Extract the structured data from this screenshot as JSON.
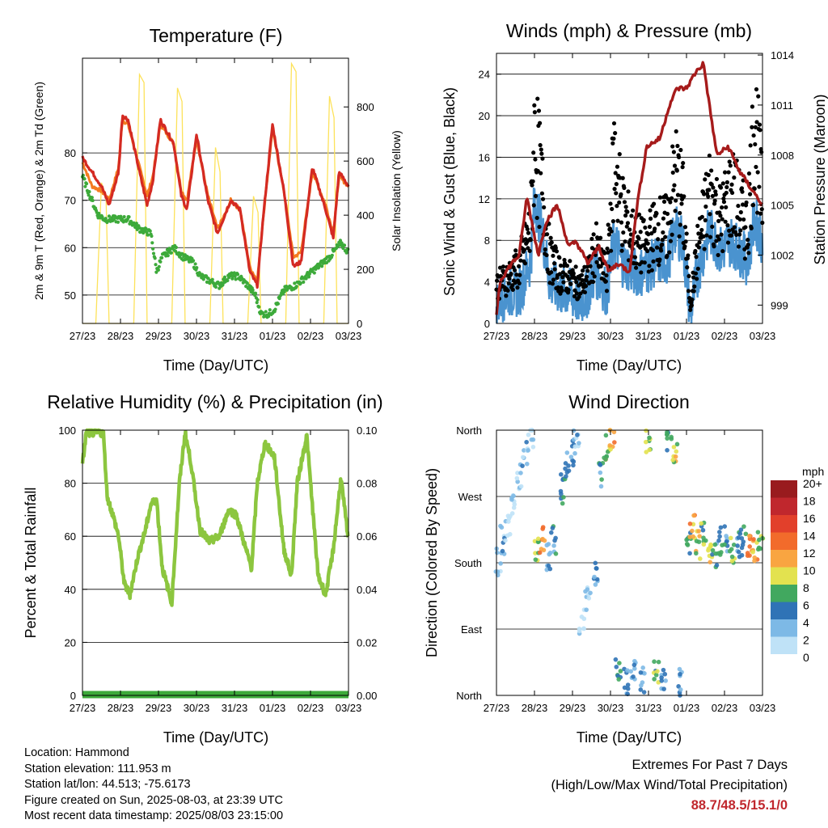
{
  "x_ticks": [
    "27/23",
    "28/23",
    "29/23",
    "30/23",
    "31/23",
    "01/23",
    "02/23",
    "03/23"
  ],
  "temperature": {
    "title": "Temperature (F)",
    "xlabel": "Time (Day/UTC)",
    "ylabel_left": "2m & 9m T (Red, Orange) & 2m Td (Green)",
    "ylabel_right": "Solar Insolation (Yellow)",
    "colors": {
      "t2m": "#d42a22",
      "t9m": "#f47b20",
      "td": "#3daa3a",
      "solar": "#fde25a"
    }
  },
  "winds": {
    "title": "Winds (mph) & Pressure (mb)",
    "xlabel": "Time (Day/UTC)",
    "ylabel_left": "Sonic Wind & Gust (Blue, Black)",
    "ylabel_right": "Station Pressure (Maroon)",
    "colors": {
      "wind": "#4a93cf",
      "gust": "#000000",
      "pressure": "#a61b1b"
    }
  },
  "humidity": {
    "title": "Relative Humidity (%) & Precipitation (in)",
    "xlabel": "Time (Day/UTC)",
    "ylabel_left": "Percent & Total Rainfall",
    "colors": {
      "rh": "#8cc63f",
      "precip": "#3daa3a"
    }
  },
  "direction": {
    "title": "Wind Direction",
    "xlabel": "Time (Day/UTC)",
    "ylabel_left": "Direction (Colored By Speed)",
    "legend_title": "mph",
    "legend_labels": [
      "20+",
      "18",
      "16",
      "14",
      "12",
      "10",
      "8",
      "6",
      "4",
      "2",
      "0"
    ],
    "legend_colors": [
      "#991b1e",
      "#c0272d",
      "#e2402b",
      "#f26b2b",
      "#f9a541",
      "#e3e24f",
      "#41a85f",
      "#2f73b6",
      "#7db9e6",
      "#bfe2f7"
    ]
  },
  "info": {
    "location": "Location: Hammond",
    "elevation": "Station elevation: 111.953 m",
    "latlon": "Station lat/lon: 44.513; -75.6173",
    "created": "Figure created on Sun, 2025-08-03, at 23:39 UTC",
    "latest": "Most recent data timestamp: 2025/08/03 23:15:00"
  },
  "extremes": {
    "heading": "Extremes For Past 7 Days",
    "subheading": "(High/Low/Max Wind/Total Precipitation)",
    "values": "88.7/48.5/15.1/0"
  },
  "chart_data": [
    {
      "type": "line",
      "title": "Temperature (F)",
      "xlabel": "Time (Day/UTC)",
      "ylabel": "2m & 9m T (Red, Orange) & 2m Td (Green)",
      "y2label": "Solar Insolation (Yellow)",
      "x_range_days": [
        0,
        7
      ],
      "ylim": [
        44,
        100
      ],
      "y_ticks": [
        50,
        60,
        70,
        80
      ],
      "y2lim": [
        0,
        980
      ],
      "y2_ticks": [
        0,
        200,
        400,
        600,
        800
      ],
      "series": [
        {
          "name": "2m T (Red)",
          "color": "#d42a22",
          "x": [
            0,
            0.25,
            0.5,
            0.7,
            0.95,
            1.05,
            1.2,
            1.5,
            1.7,
            1.85,
            2.05,
            2.4,
            2.6,
            2.75,
            3.0,
            3.3,
            3.55,
            3.75,
            3.9,
            4.15,
            4.4,
            4.6,
            4.75,
            5.0,
            5.3,
            5.55,
            5.75,
            6.05,
            6.4,
            6.6,
            6.75,
            7.0
          ],
          "y": [
            79,
            76,
            73,
            69,
            76,
            88,
            87,
            76,
            69,
            74,
            87,
            82,
            71,
            68,
            84,
            70,
            63,
            67,
            70,
            68,
            55,
            52,
            66,
            86,
            72,
            56,
            57,
            77,
            68,
            62,
            76,
            73
          ]
        },
        {
          "name": "9m T (Orange)",
          "color": "#f47b20",
          "x": [
            0,
            0.25,
            0.5,
            0.7,
            0.95,
            1.05,
            1.2,
            1.5,
            1.7,
            1.85,
            2.05,
            2.4,
            2.6,
            2.75,
            3.0,
            3.3,
            3.55,
            3.75,
            3.9,
            4.15,
            4.4,
            4.6,
            4.75,
            5.0,
            5.3,
            5.55,
            5.75,
            6.05,
            6.4,
            6.6,
            6.75,
            7.0
          ],
          "y": [
            78,
            73,
            72,
            70,
            77,
            87,
            86,
            77,
            71,
            75,
            86,
            82,
            72,
            70,
            83,
            71,
            64,
            67,
            70,
            68,
            56,
            53,
            66,
            85,
            72,
            58,
            59,
            76,
            69,
            63,
            75,
            73
          ]
        },
        {
          "name": "2m Td (Green)",
          "color": "#3daa3a",
          "x": [
            0,
            0.15,
            0.4,
            0.6,
            0.9,
            1.2,
            1.5,
            1.8,
            1.95,
            2.1,
            2.4,
            2.65,
            2.9,
            3.1,
            3.35,
            3.6,
            3.85,
            4.1,
            4.35,
            4.55,
            4.7,
            4.9,
            5.05,
            5.3,
            5.6,
            5.9,
            6.2,
            6.5,
            6.8,
            7.0
          ],
          "y": [
            75,
            72,
            67,
            66,
            66,
            66,
            64,
            63,
            55,
            58,
            60,
            58,
            57,
            54,
            53,
            52,
            54,
            54,
            52,
            50,
            46,
            46,
            47,
            51,
            52,
            54,
            56,
            58,
            61,
            59
          ]
        },
        {
          "name": "Solar Insolation (Yellow)",
          "color": "#fde25a",
          "axis": "right",
          "x": [
            0,
            0.35,
            0.5,
            0.62,
            0.7,
            1.35,
            1.5,
            1.62,
            1.7,
            2.35,
            2.5,
            2.62,
            2.7,
            3.35,
            3.5,
            3.62,
            3.7,
            4.35,
            4.5,
            4.62,
            4.7,
            5.35,
            5.5,
            5.62,
            5.7,
            6.35,
            6.5,
            6.62,
            6.7,
            7.0
          ],
          "y": [
            0,
            0,
            520,
            470,
            0,
            0,
            920,
            890,
            0,
            0,
            870,
            820,
            0,
            0,
            650,
            560,
            0,
            0,
            470,
            410,
            0,
            0,
            960,
            930,
            0,
            0,
            840,
            760,
            0,
            0
          ]
        }
      ]
    },
    {
      "type": "scatter",
      "title": "Winds (mph) & Pressure (mb)",
      "xlabel": "Time (Day/UTC)",
      "ylabel": "Sonic Wind & Gust (Blue, Black)",
      "y2label": "Station Pressure (Maroon)",
      "x_range_days": [
        0,
        7
      ],
      "ylim": [
        0,
        26
      ],
      "y_ticks": [
        0,
        4,
        8,
        12,
        16,
        20,
        24
      ],
      "y2lim": [
        997.9,
        1014.1
      ],
      "y2_ticks": [
        999,
        1002,
        1005,
        1008,
        1011,
        1014
      ],
      "series": [
        {
          "name": "Sonic Wind (Blue)",
          "color": "#4a93cf",
          "x": [
            0,
            0.3,
            0.6,
            0.9,
            1.0,
            1.2,
            1.4,
            1.7,
            1.9,
            2.2,
            2.4,
            2.6,
            2.9,
            3.1,
            3.3,
            3.6,
            3.9,
            4.2,
            4.5,
            4.7,
            4.9,
            5.1,
            5.3,
            5.6,
            5.9,
            6.2,
            6.4,
            6.6,
            6.8,
            7.0
          ],
          "y": [
            2,
            3,
            3,
            6,
            12,
            9,
            4,
            3,
            3,
            2,
            3,
            5,
            3,
            8,
            6,
            5,
            5,
            6,
            6,
            9,
            8,
            1,
            5,
            9,
            7,
            8,
            7,
            6,
            10,
            8
          ]
        },
        {
          "name": "Gust (Black)",
          "color": "#000000",
          "x": [
            0,
            0.3,
            0.6,
            0.9,
            1.0,
            1.2,
            1.4,
            1.7,
            1.9,
            2.2,
            2.4,
            2.6,
            2.9,
            3.1,
            3.3,
            3.6,
            3.9,
            4.2,
            4.5,
            4.7,
            4.9,
            5.1,
            5.3,
            5.6,
            5.9,
            6.2,
            6.4,
            6.6,
            6.8,
            7.0
          ],
          "y": [
            4,
            5,
            6,
            10,
            20,
            14,
            7,
            5,
            5,
            4,
            5,
            8,
            5,
            18,
            12,
            9,
            8,
            10,
            10,
            16,
            13,
            2,
            8,
            14,
            11,
            14,
            12,
            10,
            22,
            12
          ]
        },
        {
          "name": "Station Pressure (Maroon)",
          "color": "#a61b1b",
          "axis": "right",
          "x": [
            0,
            0.1,
            0.4,
            0.6,
            0.8,
            1.1,
            1.3,
            1.6,
            1.9,
            2.1,
            2.4,
            2.7,
            2.95,
            3.2,
            3.5,
            3.7,
            3.95,
            4.3,
            4.55,
            4.75,
            5.0,
            5.25,
            5.45,
            5.6,
            5.8,
            6.1,
            6.4,
            6.7,
            7.0
          ],
          "y": [
            998.5,
            1000.5,
            1001.5,
            1002,
            1005.5,
            1002,
            1004,
            1005,
            1002.5,
            1002.8,
            1001.5,
            1002.5,
            1001,
            1001.5,
            1001,
            1005,
            1008.5,
            1009,
            1011,
            1012,
            1012,
            1013,
            1013.5,
            1011,
            1008,
            1008.5,
            1007,
            1006,
            1005
          ]
        }
      ]
    },
    {
      "type": "line",
      "title": "Relative Humidity (%) & Precipitation (in)",
      "xlabel": "Time (Day/UTC)",
      "ylabel": "Percent & Total Rainfall",
      "x_range_days": [
        0,
        7
      ],
      "ylim": [
        0,
        100
      ],
      "y_ticks": [
        0,
        20,
        40,
        60,
        80,
        100
      ],
      "y2lim": [
        0,
        0.1
      ],
      "y2_ticks": [
        0.0,
        0.02,
        0.04,
        0.06,
        0.08,
        0.1
      ],
      "series": [
        {
          "name": "Relative Humidity",
          "color": "#8cc63f",
          "x": [
            0,
            0.1,
            0.3,
            0.55,
            0.65,
            0.8,
            0.95,
            1.1,
            1.25,
            1.45,
            1.65,
            1.8,
            1.95,
            2.1,
            2.35,
            2.55,
            2.7,
            2.85,
            3.1,
            3.35,
            3.6,
            3.85,
            4.05,
            4.3,
            4.45,
            4.6,
            4.8,
            5.05,
            5.3,
            5.5,
            5.65,
            5.9,
            6.2,
            6.4,
            6.6,
            6.8,
            7.0
          ],
          "y": [
            87,
            99,
            99,
            99,
            75,
            68,
            60,
            42,
            38,
            52,
            62,
            72,
            74,
            48,
            35,
            80,
            99,
            88,
            62,
            58,
            60,
            70,
            68,
            55,
            48,
            80,
            95,
            90,
            55,
            45,
            80,
            98,
            45,
            38,
            55,
            82,
            58
          ]
        },
        {
          "name": "Total Precipitation",
          "color": "#3daa3a",
          "axis": "right",
          "x": [
            0,
            7
          ],
          "y": [
            0,
            0
          ]
        }
      ]
    },
    {
      "type": "scatter",
      "title": "Wind Direction",
      "xlabel": "Time (Day/UTC)",
      "ylabel": "Direction (Colored By Speed)",
      "x_range_days": [
        0,
        7
      ],
      "y_ticks": [
        "North",
        "East",
        "South",
        "West",
        "North"
      ],
      "y_range_deg": [
        0,
        360
      ],
      "legend": "mph",
      "series": [
        {
          "name": "Wind direction points",
          "x": [
            0.05,
            0.15,
            0.3,
            0.45,
            0.6,
            0.75,
            0.9,
            1.05,
            1.2,
            1.35,
            1.5,
            1.7,
            1.85,
            2.0,
            2.1,
            2.25,
            2.4,
            2.6,
            2.75,
            2.9,
            3.05,
            3.2,
            3.4,
            3.6,
            3.85,
            4.0,
            4.2,
            4.4,
            4.55,
            4.7,
            4.85,
            5.05,
            5.15,
            5.3,
            5.45,
            5.6,
            5.75,
            5.9,
            6.05,
            6.2,
            6.35,
            6.5,
            6.65,
            6.8,
            6.95
          ],
          "y": [
            180,
            210,
            230,
            260,
            300,
            330,
            350,
            200,
            210,
            190,
            210,
            280,
            310,
            330,
            340,
            100,
            130,
            170,
            300,
            340,
            350,
            40,
            20,
            30,
            20,
            350,
            30,
            20,
            350,
            330,
            20,
            210,
            230,
            205,
            220,
            200,
            190,
            210,
            215,
            200,
            205,
            210,
            205,
            200,
            210
          ],
          "speed_mph": [
            2,
            3,
            1,
            2,
            2,
            3,
            2,
            8,
            12,
            4,
            5,
            6,
            5,
            4,
            3,
            1,
            2,
            4,
            5,
            9,
            11,
            6,
            5,
            3,
            4,
            8,
            7,
            4,
            6,
            9,
            4,
            6,
            11,
            9,
            7,
            10,
            5,
            6,
            5,
            8,
            5,
            6,
            13,
            11,
            8
          ]
        }
      ]
    }
  ]
}
